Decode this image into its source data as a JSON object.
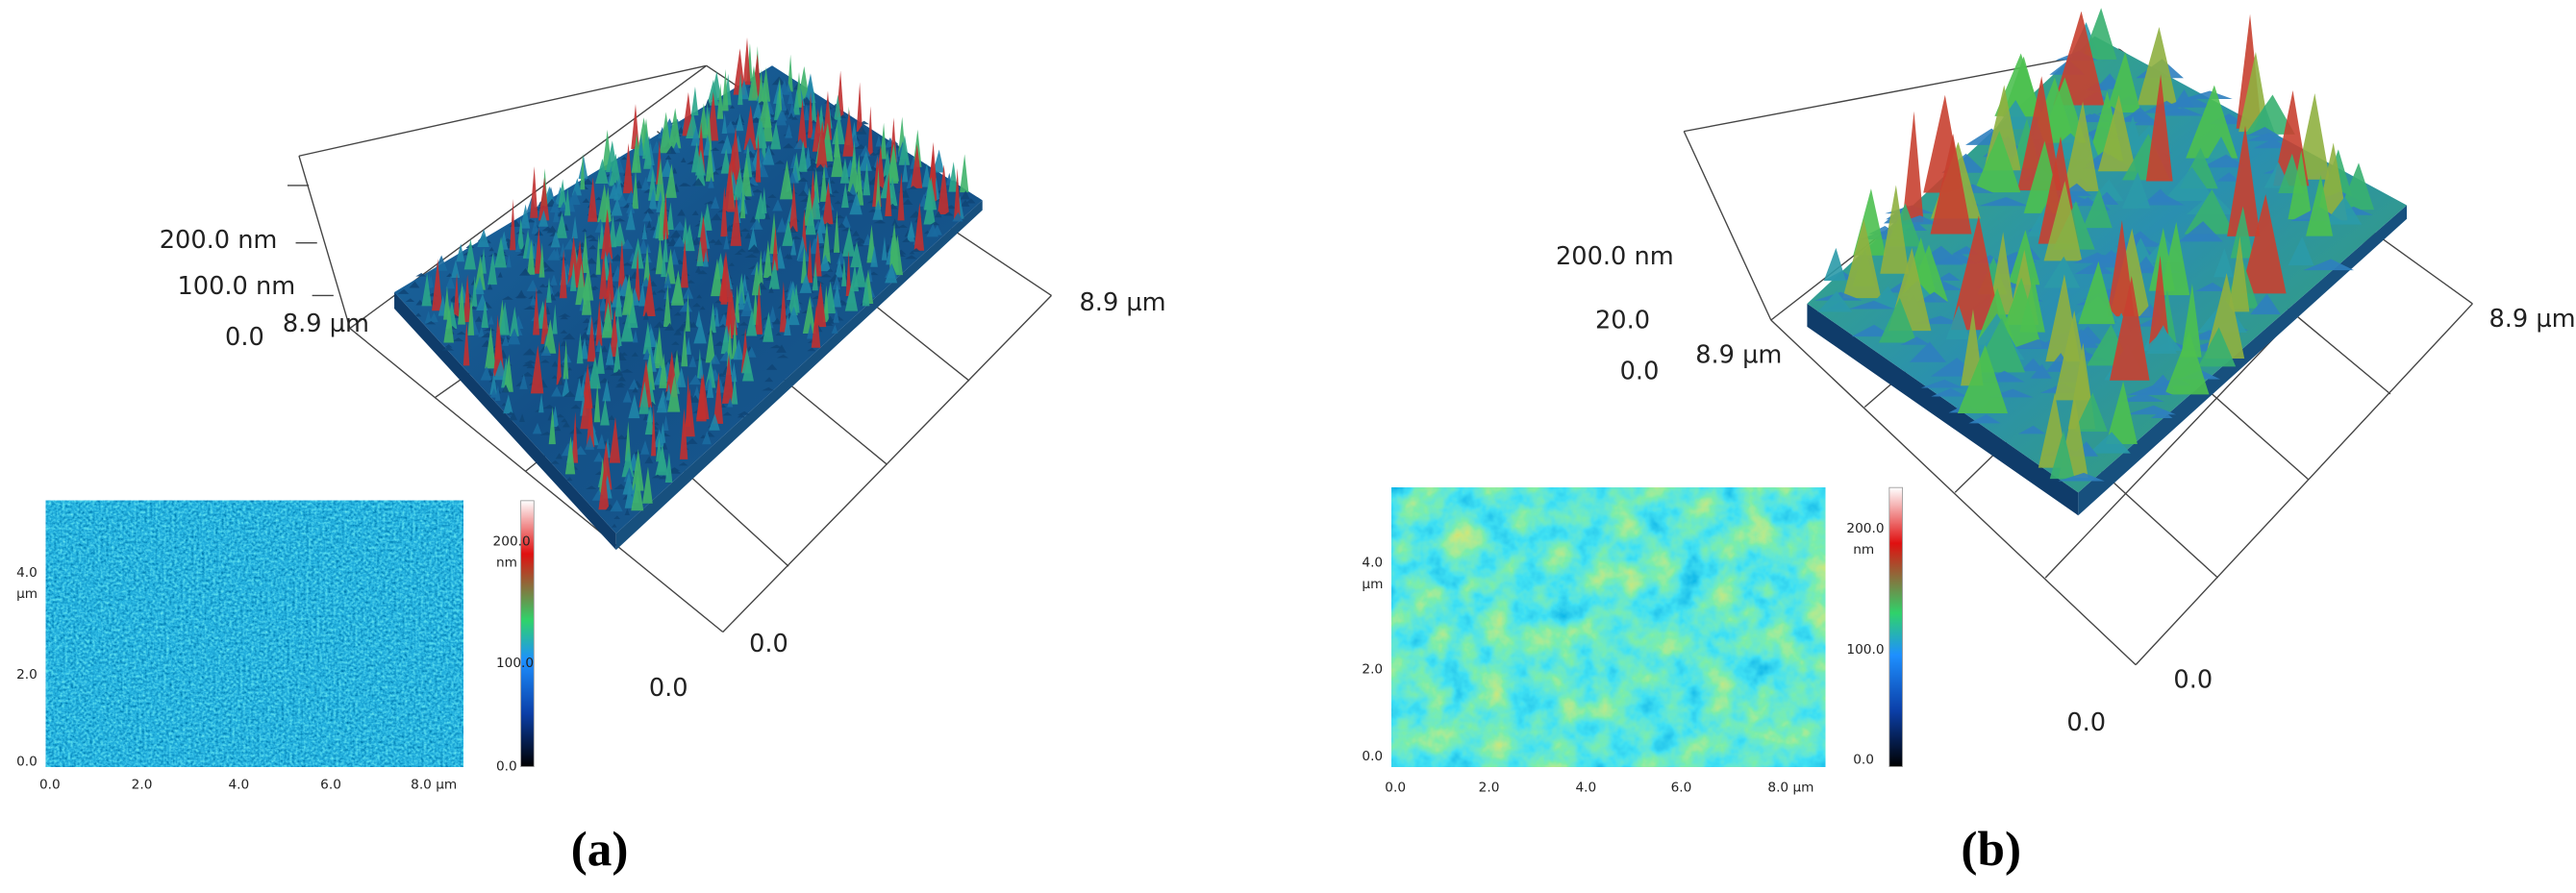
{
  "panels": [
    {
      "label": "(a)",
      "surface": {
        "z_ticks": [
          "200.0 nm",
          "100.0 nm",
          "0.0"
        ],
        "y_end": "8.9 µm",
        "x_end": "8.9 µm",
        "x_origin": "0.0",
        "y_origin": "0.0"
      },
      "inset": {
        "y_ticks": [
          "4.0",
          "2.0",
          "0.0"
        ],
        "y_unit": "µm",
        "x_ticks": [
          "0.0",
          "2.0",
          "4.0",
          "6.0",
          "8.0 µm"
        ],
        "colorbar_ticks": [
          "200.0",
          "100.0",
          "0.0"
        ],
        "colorbar_unit": "nm"
      }
    },
    {
      "label": "(b)",
      "surface": {
        "z_ticks": [
          "200.0 nm",
          "20.0",
          "0.0"
        ],
        "y_end": "8.9 µm",
        "x_end": "8.9 µm",
        "x_origin": "0.0",
        "y_origin": "0.0"
      },
      "inset": {
        "y_ticks": [
          "4.0",
          "2.0",
          "0.0"
        ],
        "y_unit": "µm",
        "x_ticks": [
          "0.0",
          "2.0",
          "4.0",
          "6.0",
          "8.0 µm"
        ],
        "colorbar_ticks": [
          "200.0",
          "100.0",
          "0.0"
        ],
        "colorbar_unit": "nm"
      }
    }
  ]
}
